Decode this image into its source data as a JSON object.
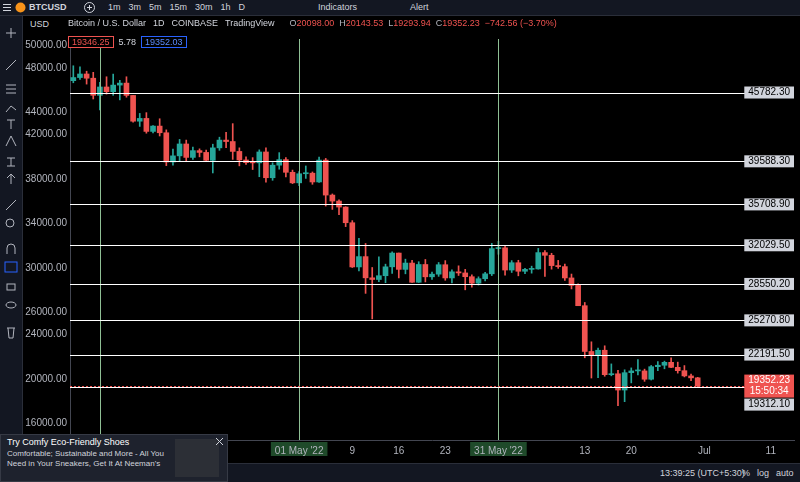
{
  "toolbar": {
    "symbol": "BTCUSD",
    "intervals": [
      "1m",
      "3m",
      "5m",
      "15m",
      "30m",
      "1h",
      "D"
    ],
    "buttons": [
      "Indicators",
      "Alert"
    ]
  },
  "currency": "USD",
  "header": {
    "title": "Bitcoin / U.S. Dollar",
    "interval": "1D",
    "exchange": "COINBASE",
    "source": "TradingView",
    "ohlc": [
      [
        "O",
        "20098.00"
      ],
      [
        "H",
        "20143.53"
      ],
      [
        "L",
        "19293.94"
      ],
      [
        "C",
        "19352.23"
      ]
    ],
    "change": "−742.56 (−3.70%)",
    "bid": "19346.25",
    "spread": "5.78",
    "ask": "19352.03"
  },
  "chart_data": {
    "type": "candlestick",
    "x": [
      null,
      null,
      null,
      null,
      null,
      null,
      null,
      null,
      null,
      null,
      null,
      null,
      null,
      null,
      null,
      null,
      null,
      null,
      null,
      null,
      null,
      null,
      null,
      null,
      null,
      null,
      null,
      null,
      null,
      null,
      null,
      null,
      null,
      null,
      "01 May '22",
      null,
      null,
      null,
      null,
      null,
      null,
      null,
      "9",
      null,
      null,
      null,
      null,
      null,
      null,
      "16",
      null,
      null,
      null,
      null,
      null,
      null,
      "23",
      null,
      null,
      null,
      null,
      null,
      null,
      null,
      "31 May '22",
      null,
      null,
      null,
      null,
      null,
      null,
      null,
      null,
      null,
      null,
      null,
      null,
      "13",
      null,
      null,
      null,
      null,
      null,
      null,
      "20",
      null,
      null,
      null,
      null,
      null,
      null,
      null,
      null,
      null,
      null,
      "Jul",
      null,
      null,
      null,
      null,
      null,
      null,
      null,
      null,
      null,
      "11",
      null,
      null,
      null
    ],
    "ohlc": [
      [
        46850,
        48190,
        46660,
        47130
      ],
      [
        47130,
        48100,
        46950,
        47450
      ],
      [
        47450,
        47700,
        46540,
        47070
      ],
      [
        47070,
        47600,
        45200,
        45530
      ],
      [
        45530,
        46700,
        44220,
        46280
      ],
      [
        46280,
        47200,
        45640,
        45860
      ],
      [
        45860,
        47440,
        45530,
        46450
      ],
      [
        46450,
        46880,
        45120,
        46630
      ],
      [
        46630,
        47200,
        45360,
        45520
      ],
      [
        45520,
        45520,
        43120,
        43200
      ],
      [
        43200,
        43900,
        42730,
        43450
      ],
      [
        43450,
        43970,
        42120,
        42280
      ],
      [
        42280,
        42800,
        42140,
        42760
      ],
      [
        42760,
        43420,
        41870,
        42160
      ],
      [
        42160,
        42420,
        39200,
        39530
      ],
      [
        39530,
        40700,
        39250,
        40080
      ],
      [
        40080,
        41560,
        39600,
        41150
      ],
      [
        41150,
        41500,
        39560,
        39940
      ],
      [
        39940,
        40860,
        39770,
        40550
      ],
      [
        40550,
        40710,
        39990,
        40390
      ],
      [
        40390,
        40600,
        39550,
        39680
      ],
      [
        39680,
        41130,
        38540,
        40800
      ],
      [
        40800,
        41760,
        40580,
        41500
      ],
      [
        41500,
        42200,
        40820,
        41370
      ],
      [
        41370,
        42980,
        39760,
        40480
      ],
      [
        40480,
        40800,
        39180,
        39710
      ],
      [
        39710,
        39990,
        39300,
        39470
      ],
      [
        39470,
        39920,
        38850,
        39450
      ],
      [
        39450,
        40620,
        38200,
        40430
      ],
      [
        40430,
        40800,
        37700,
        38110
      ],
      [
        38110,
        39460,
        37880,
        39240
      ],
      [
        39240,
        40370,
        38880,
        39740
      ],
      [
        39740,
        39920,
        38180,
        38600
      ],
      [
        38600,
        38800,
        37580,
        37650
      ],
      [
        37650,
        38670,
        37390,
        38470
      ],
      [
        38470,
        39170,
        38050,
        38520
      ],
      [
        38520,
        38630,
        37520,
        37730
      ],
      [
        37730,
        39980,
        37680,
        39700
      ],
      [
        39700,
        39850,
        35560,
        36550
      ],
      [
        36550,
        36650,
        35260,
        36010
      ],
      [
        36010,
        36130,
        34790,
        35470
      ],
      [
        35470,
        35500,
        33710,
        34060
      ],
      [
        34060,
        34250,
        30030,
        30080
      ],
      [
        30080,
        32660,
        29730,
        31010
      ],
      [
        31010,
        32190,
        27700,
        29100
      ],
      [
        29100,
        30030,
        25400,
        28950
      ],
      [
        28950,
        30990,
        28750,
        29290
      ],
      [
        29290,
        30330,
        28660,
        30090
      ],
      [
        30090,
        31440,
        29490,
        31330
      ],
      [
        31330,
        31330,
        29090,
        29860
      ],
      [
        29860,
        30780,
        29460,
        30430
      ],
      [
        30430,
        30680,
        28680,
        28700
      ],
      [
        28700,
        30550,
        28680,
        30300
      ],
      [
        30300,
        30750,
        28730,
        29190
      ],
      [
        29190,
        29620,
        28950,
        29430
      ],
      [
        29430,
        30480,
        29230,
        30280
      ],
      [
        30280,
        30650,
        28880,
        29090
      ],
      [
        29090,
        29830,
        28640,
        29640
      ],
      [
        29640,
        30180,
        29310,
        29540
      ],
      [
        29540,
        29860,
        28020,
        29200
      ],
      [
        29200,
        29370,
        28260,
        28620
      ],
      [
        28620,
        29190,
        28450,
        29020
      ],
      [
        29020,
        29600,
        28830,
        29460
      ],
      [
        29460,
        32200,
        29300,
        31730
      ],
      [
        31730,
        32390,
        31220,
        31800
      ],
      [
        31800,
        31980,
        29330,
        29800
      ],
      [
        29800,
        30650,
        29580,
        30460
      ],
      [
        30460,
        30680,
        29280,
        29690
      ],
      [
        29690,
        29950,
        29470,
        29860
      ],
      [
        29860,
        30150,
        29520,
        29900
      ],
      [
        29900,
        31750,
        29880,
        31370
      ],
      [
        31370,
        31550,
        29220,
        31130
      ],
      [
        31130,
        31310,
        29880,
        30200
      ],
      [
        30200,
        30670,
        29950,
        30110
      ],
      [
        30110,
        30340,
        28860,
        29090
      ],
      [
        29090,
        29440,
        28100,
        28420
      ],
      [
        28420,
        28570,
        26590,
        26590
      ],
      [
        26590,
        26880,
        21900,
        22470
      ],
      [
        22470,
        23340,
        20080,
        22140
      ],
      [
        22140,
        22770,
        20110,
        22580
      ],
      [
        22580,
        22980,
        20240,
        20380
      ],
      [
        20380,
        21350,
        20280,
        20460
      ],
      [
        20460,
        20780,
        17600,
        19000
      ],
      [
        19000,
        20820,
        17950,
        20560
      ],
      [
        20560,
        20990,
        19640,
        20720
      ],
      [
        20720,
        21730,
        20350,
        20720
      ],
      [
        20720,
        20880,
        19780,
        19970
      ],
      [
        19970,
        21210,
        19900,
        21100
      ],
      [
        21100,
        21550,
        20740,
        21230
      ],
      [
        21230,
        21600,
        20910,
        21490
      ],
      [
        21490,
        21890,
        21020,
        21040
      ],
      [
        21040,
        21510,
        20520,
        20740
      ],
      [
        20740,
        21200,
        20180,
        20270
      ],
      [
        20270,
        20430,
        19850,
        20094.79
      ],
      [
        20098,
        20143.53,
        19293.94,
        19352.23
      ],
      null,
      null,
      null,
      null,
      null,
      null,
      null,
      null,
      null,
      null,
      null,
      null,
      null,
      null
    ],
    "color": {
      "up": "#26a69a",
      "down": "#ef5350"
    },
    "ylim": [
      14500,
      50600
    ],
    "yticks": [
      {
        "value": 16000,
        "label": "16000.00"
      },
      {
        "value": 20000,
        "label": "20000.00"
      },
      {
        "value": 24000,
        "label": "24000.00"
      },
      {
        "value": 26000,
        "label": "26000.00"
      },
      {
        "value": 30000,
        "label": "30000.00"
      },
      {
        "value": 34000,
        "label": "34000.00"
      },
      {
        "value": 38000,
        "label": "38000.00"
      },
      {
        "value": 42000,
        "label": "42000.00"
      },
      {
        "value": 44000,
        "label": "44000.00"
      },
      {
        "value": 48000,
        "label": "48000.00"
      },
      {
        "value": 50000,
        "label": "50000.00"
      }
    ],
    "grid": false,
    "horizontal_lines": [
      {
        "value": 45782.3,
        "label": "45782.30"
      },
      {
        "value": 39588.3,
        "label": "39588.30"
      },
      {
        "value": 35708.9,
        "label": "35708.90"
      },
      {
        "value": 32029.5,
        "label": "32029.50"
      },
      {
        "value": 28550.2,
        "label": "28550.20"
      },
      {
        "value": 25270.8,
        "label": "25270.80"
      },
      {
        "value": 22191.5,
        "label": "22191.50"
      },
      {
        "value": 19312.1,
        "label": "19312.10"
      }
    ],
    "vertical_lines": [
      4,
      34,
      64
    ],
    "last_price": {
      "value": 19352.23,
      "label": "19352.23",
      "countdown": "15:50:34"
    }
  },
  "status_bar": {
    "time": "13:39:25 (UTC+5:30)",
    "buttons": [
      "%",
      "log",
      "auto"
    ]
  },
  "ad": {
    "title": "Try Comfy Eco-Friendly Shoes",
    "text": "Comfortable; Sustainable and More - All You Need in Your Sneakers, Get It At Neeman's"
  }
}
